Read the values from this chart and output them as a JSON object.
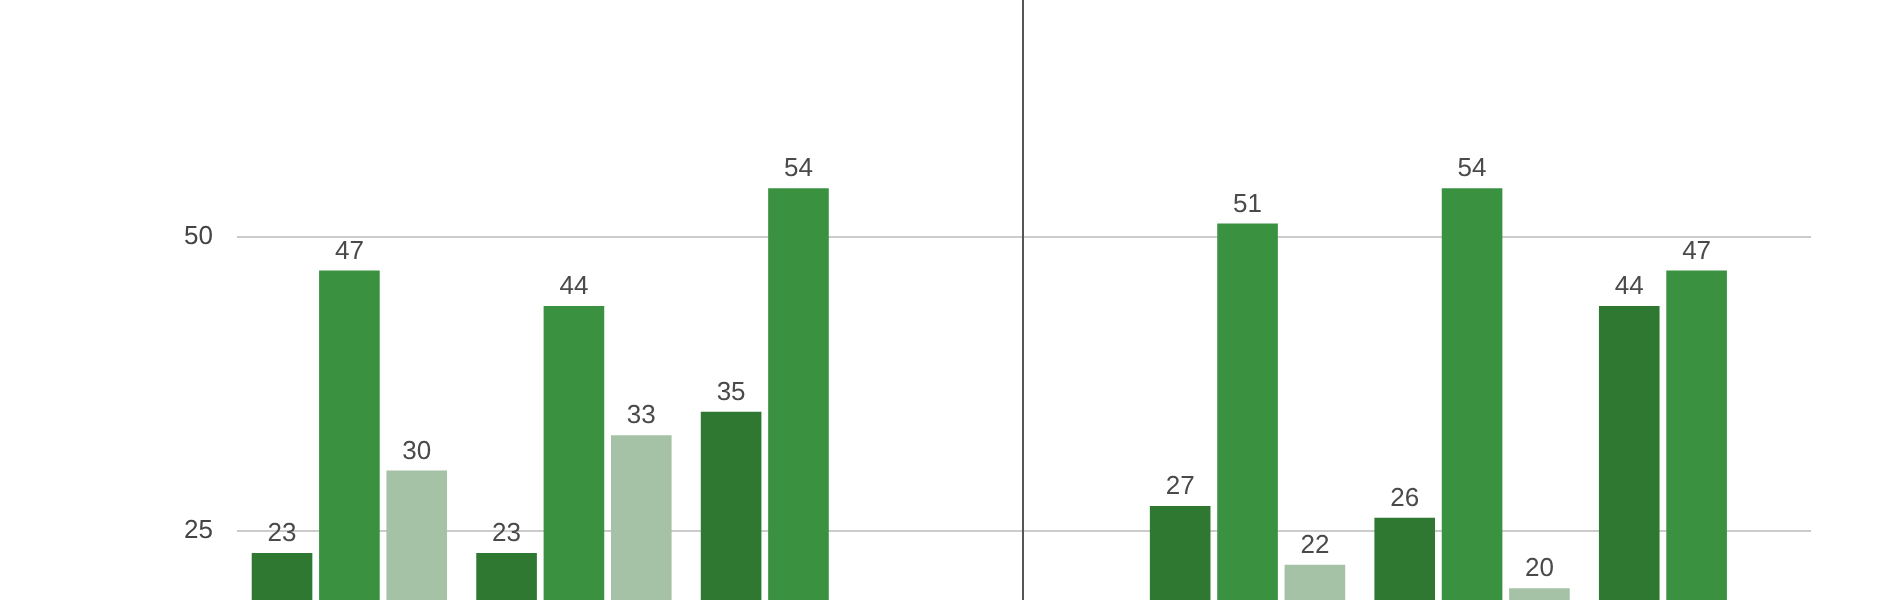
{
  "chart_data": {
    "type": "bar",
    "categories": [
      null,
      null,
      null,
      null,
      null,
      null,
      null
    ],
    "series": [
      {
        "color": "#2e7832",
        "values": [
          23,
          23,
          35,
          null,
          27,
          26,
          44
        ]
      },
      {
        "color": "#3a9140",
        "values": [
          47,
          44,
          54,
          null,
          51,
          54,
          47
        ]
      },
      {
        "color": "#a6c2a6",
        "values": [
          30,
          33,
          null,
          null,
          22,
          20,
          null
        ]
      }
    ],
    "ylim": [
      19,
      70
    ],
    "yticks": [
      25,
      50
    ],
    "grid": "y",
    "data_labels": true,
    "tick_labels": "y"
  }
}
